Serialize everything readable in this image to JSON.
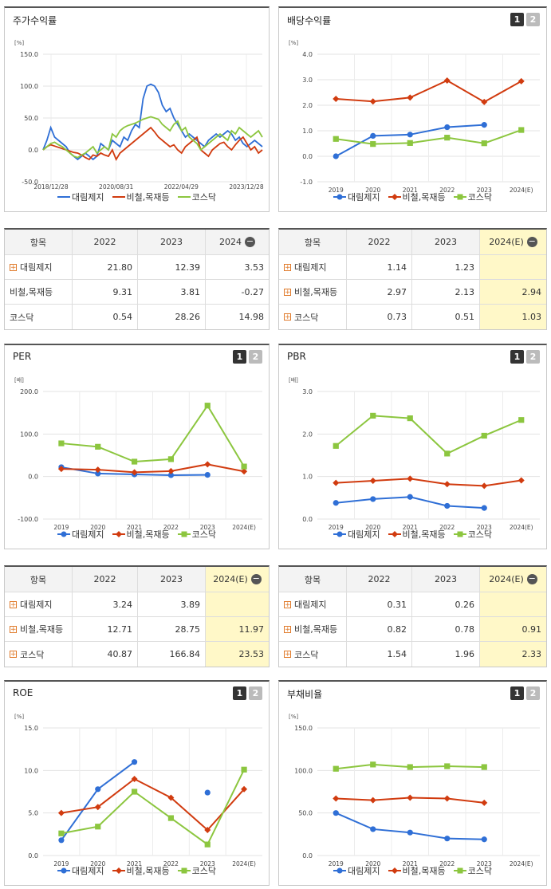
{
  "colors": {
    "s1": "#2f6fd6",
    "s2": "#d13b0f",
    "s3": "#8cc63f"
  },
  "series_names": [
    "대림제지",
    "비철,목재등",
    "코스닥"
  ],
  "pager": {
    "p1": "1",
    "p2": "2"
  },
  "charts": [
    {
      "id": "stock",
      "title": "주가수익률",
      "unit": "[%]",
      "pager": false,
      "chart_data": {
        "type": "line",
        "x_ticks": [
          "2018/12/28",
          "2020/08/31",
          "2022/04/29",
          "2023/12/28"
        ],
        "y_ticks": [
          "150.0",
          "100.0",
          "50.0",
          "0.0",
          "-50.0"
        ],
        "ylim": [
          -50,
          150
        ],
        "series": [
          {
            "name": "대림제지",
            "values": [
              0,
              15,
              35,
              20,
              15,
              10,
              5,
              -5,
              -10,
              -15,
              -10,
              -5,
              -10,
              -15,
              -10,
              10,
              5,
              0,
              15,
              10,
              5,
              20,
              15,
              30,
              40,
              35,
              80,
              100,
              103,
              100,
              90,
              70,
              60,
              65,
              50,
              40,
              30,
              20,
              25,
              20,
              15,
              10,
              5,
              15,
              20,
              25,
              20,
              25,
              30,
              25,
              15,
              20,
              10,
              5,
              10,
              15,
              10,
              5
            ]
          },
          {
            "name": "비철,목재등",
            "values": [
              0,
              5,
              8,
              6,
              4,
              2,
              0,
              -2,
              -4,
              -5,
              -8,
              -12,
              -15,
              -8,
              -10,
              -5,
              -8,
              -10,
              0,
              -15,
              -5,
              0,
              5,
              10,
              15,
              20,
              25,
              30,
              35,
              28,
              20,
              15,
              10,
              5,
              8,
              0,
              -5,
              5,
              10,
              15,
              20,
              0,
              -5,
              -10,
              0,
              5,
              10,
              12,
              5,
              0,
              8,
              15,
              20,
              10,
              0,
              5,
              -5,
              0
            ]
          },
          {
            "name": "코스닥",
            "values": [
              0,
              5,
              10,
              12,
              8,
              5,
              0,
              -5,
              -10,
              -12,
              -8,
              -5,
              0,
              5,
              -5,
              0,
              5,
              0,
              25,
              20,
              30,
              35,
              38,
              40,
              42,
              45,
              48,
              50,
              52,
              50,
              48,
              40,
              35,
              30,
              40,
              45,
              30,
              35,
              20,
              15,
              10,
              0,
              5,
              10,
              15,
              20,
              25,
              20,
              15,
              30,
              25,
              35,
              30,
              25,
              20,
              25,
              30,
              20
            ]
          }
        ]
      }
    },
    {
      "id": "div",
      "title": "배당수익률",
      "unit": "[%]",
      "pager": true,
      "chart_data": {
        "type": "line",
        "categories": [
          "2019",
          "2020",
          "2021",
          "2022",
          "2023",
          "2024(E)"
        ],
        "y_ticks": [
          "4.0",
          "3.0",
          "2.0",
          "1.0",
          "0.0",
          "-1.0"
        ],
        "ylim": [
          -1,
          4
        ],
        "series": [
          {
            "name": "대림제지",
            "values": [
              0.0,
              0.8,
              0.85,
              1.14,
              1.23,
              null
            ]
          },
          {
            "name": "비철,목재등",
            "values": [
              2.25,
              2.15,
              2.3,
              2.97,
              2.13,
              2.94
            ]
          },
          {
            "name": "코스닥",
            "values": [
              0.68,
              0.48,
              0.52,
              0.73,
              0.51,
              1.03
            ]
          }
        ]
      }
    },
    {
      "id": "per",
      "title": "PER",
      "unit": "[배]",
      "pager": true,
      "chart_data": {
        "type": "line",
        "categories": [
          "2019",
          "2020",
          "2021",
          "2022",
          "2023",
          "2024(E)"
        ],
        "y_ticks": [
          "200.0",
          "100.0",
          "0.0",
          "-100.0"
        ],
        "ylim": [
          -100,
          200
        ],
        "series": [
          {
            "name": "대림제지",
            "values": [
              22,
              7,
              5,
              3.24,
              3.89,
              null
            ]
          },
          {
            "name": "비철,목재등",
            "values": [
              18,
              16,
              10,
              12.71,
              28.75,
              11.97
            ]
          },
          {
            "name": "코스닥",
            "values": [
              78,
              70,
              35,
              40.87,
              166.84,
              23.53
            ]
          }
        ]
      }
    },
    {
      "id": "pbr",
      "title": "PBR",
      "unit": "[배]",
      "pager": true,
      "chart_data": {
        "type": "line",
        "categories": [
          "2019",
          "2020",
          "2021",
          "2022",
          "2023",
          "2024(E)"
        ],
        "y_ticks": [
          "3.0",
          "2.0",
          "1.0",
          "0.0"
        ],
        "ylim": [
          0,
          3
        ],
        "series": [
          {
            "name": "대림제지",
            "values": [
              0.38,
              0.47,
              0.52,
              0.31,
              0.26,
              null
            ]
          },
          {
            "name": "비철,목재등",
            "values": [
              0.85,
              0.9,
              0.95,
              0.82,
              0.78,
              0.91
            ]
          },
          {
            "name": "코스닥",
            "values": [
              1.72,
              2.43,
              2.37,
              1.54,
              1.96,
              2.33
            ]
          }
        ]
      }
    },
    {
      "id": "roe",
      "title": "ROE",
      "unit": "[%]",
      "pager": true,
      "chart_data": {
        "type": "line",
        "categories": [
          "2019",
          "2020",
          "2021",
          "2022",
          "2023",
          "2024(E)"
        ],
        "y_ticks": [
          "15.0",
          "10.0",
          "5.0",
          "0.0"
        ],
        "ylim": [
          0,
          15
        ],
        "series": [
          {
            "name": "대림제지",
            "values": [
              1.8,
              7.8,
              11.0,
              null,
              7.4,
              null
            ]
          },
          {
            "name": "비철,목재등",
            "values": [
              5.0,
              5.7,
              9.0,
              6.8,
              3.0,
              7.8
            ]
          },
          {
            "name": "코스닥",
            "values": [
              2.6,
              3.4,
              7.5,
              4.4,
              1.3,
              10.1
            ]
          }
        ]
      }
    },
    {
      "id": "debt",
      "title": "부채비율",
      "unit": "[%]",
      "pager": true,
      "chart_data": {
        "type": "line",
        "categories": [
          "2019",
          "2020",
          "2021",
          "2022",
          "2023",
          "2024(E)"
        ],
        "y_ticks": [
          "150.0",
          "100.0",
          "50.0",
          "0.0"
        ],
        "ylim": [
          0,
          150
        ],
        "series": [
          {
            "name": "대림제지",
            "values": [
              50,
              31,
              27,
              20,
              19,
              null
            ]
          },
          {
            "name": "비철,목재등",
            "values": [
              67,
              65,
              68,
              67,
              62,
              null
            ]
          },
          {
            "name": "코스닥",
            "values": [
              102,
              107,
              104,
              105,
              104,
              null
            ]
          }
        ]
      }
    }
  ],
  "tables": [
    {
      "id": "t-stock",
      "header": [
        "항목",
        "2022",
        "2023",
        "2024"
      ],
      "minus": true,
      "hl": false,
      "rows": [
        [
          "대림제지",
          "21.80",
          "12.39",
          "3.53",
          true
        ],
        [
          "비철,목재등",
          "9.31",
          "3.81",
          "-0.27",
          false
        ],
        [
          "코스닥",
          "0.54",
          "28.26",
          "14.98",
          false
        ]
      ]
    },
    {
      "id": "t-div",
      "header": [
        "항목",
        "2022",
        "2023",
        "2024(E)"
      ],
      "minus": true,
      "hl": true,
      "rows": [
        [
          "대림제지",
          "1.14",
          "1.23",
          "",
          true
        ],
        [
          "비철,목재등",
          "2.97",
          "2.13",
          "2.94",
          true
        ],
        [
          "코스닥",
          "0.73",
          "0.51",
          "1.03",
          true
        ]
      ]
    },
    {
      "id": "t-per",
      "header": [
        "항목",
        "2022",
        "2023",
        "2024(E)"
      ],
      "minus": true,
      "hl": true,
      "rows": [
        [
          "대림제지",
          "3.24",
          "3.89",
          "",
          true
        ],
        [
          "비철,목재등",
          "12.71",
          "28.75",
          "11.97",
          true
        ],
        [
          "코스닥",
          "40.87",
          "166.84",
          "23.53",
          true
        ]
      ]
    },
    {
      "id": "t-pbr",
      "header": [
        "항목",
        "2022",
        "2023",
        "2024(E)"
      ],
      "minus": true,
      "hl": true,
      "rows": [
        [
          "대림제지",
          "0.31",
          "0.26",
          "",
          true
        ],
        [
          "비철,목재등",
          "0.82",
          "0.78",
          "0.91",
          true
        ],
        [
          "코스닥",
          "1.54",
          "1.96",
          "2.33",
          true
        ]
      ]
    }
  ]
}
